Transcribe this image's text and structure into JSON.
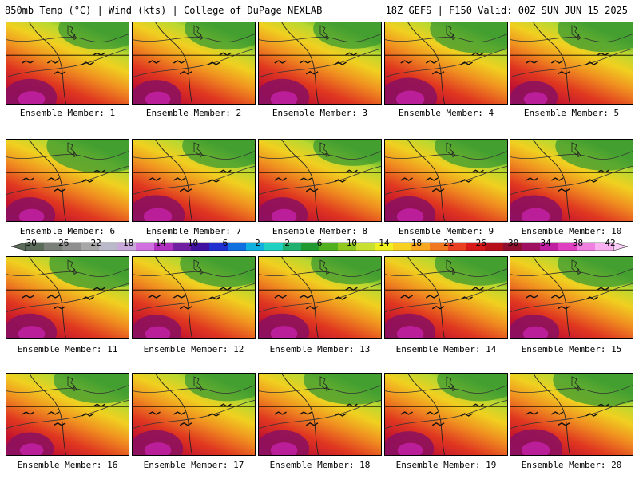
{
  "header": {
    "left": "850mb Temp (°C) | Wind (kts) | College of DuPage NEXLAB",
    "right": "18Z GEFS | F150 Valid: 00Z SUN JUN 15 2025"
  },
  "panels": [
    {
      "label": "Ensemble Member: 1",
      "hot": 0.85,
      "cool": 0.3
    },
    {
      "label": "Ensemble Member: 2",
      "hot": 0.8,
      "cool": 0.3
    },
    {
      "label": "Ensemble Member: 3",
      "hot": 0.85,
      "cool": 0.25
    },
    {
      "label": "Ensemble Member: 4",
      "hot": 0.9,
      "cool": 0.45
    },
    {
      "label": "Ensemble Member: 5",
      "hot": 0.75,
      "cool": 0.4
    },
    {
      "label": "Ensemble Member: 6",
      "hot": 0.8,
      "cool": 0.55
    },
    {
      "label": "Ensemble Member: 7",
      "hot": 0.9,
      "cool": 0.35
    },
    {
      "label": "Ensemble Member: 8",
      "hot": 0.8,
      "cool": 0.25
    },
    {
      "label": "Ensemble Member: 9",
      "hot": 0.85,
      "cool": 0.35
    },
    {
      "label": "Ensemble Member: 10",
      "hot": 0.9,
      "cool": 0.45
    },
    {
      "label": "Ensemble Member: 11",
      "hot": 0.85,
      "cool": 0.5
    },
    {
      "label": "Ensemble Member: 12",
      "hot": 0.8,
      "cool": 0.4
    },
    {
      "label": "Ensemble Member: 13",
      "hot": 0.85,
      "cool": 0.3
    },
    {
      "label": "Ensemble Member: 14",
      "hot": 0.85,
      "cool": 0.35
    },
    {
      "label": "Ensemble Member: 15",
      "hot": 0.8,
      "cool": 0.4
    },
    {
      "label": "Ensemble Member: 16",
      "hot": 0.75,
      "cool": 0.4
    },
    {
      "label": "Ensemble Member: 17",
      "hot": 0.85,
      "cool": 0.3
    },
    {
      "label": "Ensemble Member: 18",
      "hot": 0.85,
      "cool": 0.45
    },
    {
      "label": "Ensemble Member: 19",
      "hot": 0.8,
      "cool": 0.3
    },
    {
      "label": "Ensemble Member: 20",
      "hot": 0.9,
      "cool": 0.5
    }
  ],
  "colorbar": {
    "labels": [
      "−30",
      "−26",
      "−22",
      "−18",
      "−14",
      "−10",
      "−6",
      "−2",
      "2",
      "6",
      "10",
      "14",
      "18",
      "22",
      "26",
      "30",
      "34",
      "38",
      "42"
    ],
    "colors": [
      "#5a6b5a",
      "#7a7f7a",
      "#8f8f8f",
      "#a7a7a7",
      "#b9b9c9",
      "#c8a8d8",
      "#d070e0",
      "#b030c0",
      "#7020a0",
      "#4010a0",
      "#2030d0",
      "#1070e0",
      "#10b0e0",
      "#20d0c0",
      "#20b070",
      "#209a30",
      "#50b020",
      "#90c820",
      "#c8e030",
      "#f0f020",
      "#f8d020",
      "#f8a820",
      "#f07820",
      "#e84020",
      "#d81818",
      "#b81018",
      "#901030",
      "#a01060",
      "#c020a0",
      "#e040c0",
      "#f080e0",
      "#f8b0f0"
    ]
  }
}
